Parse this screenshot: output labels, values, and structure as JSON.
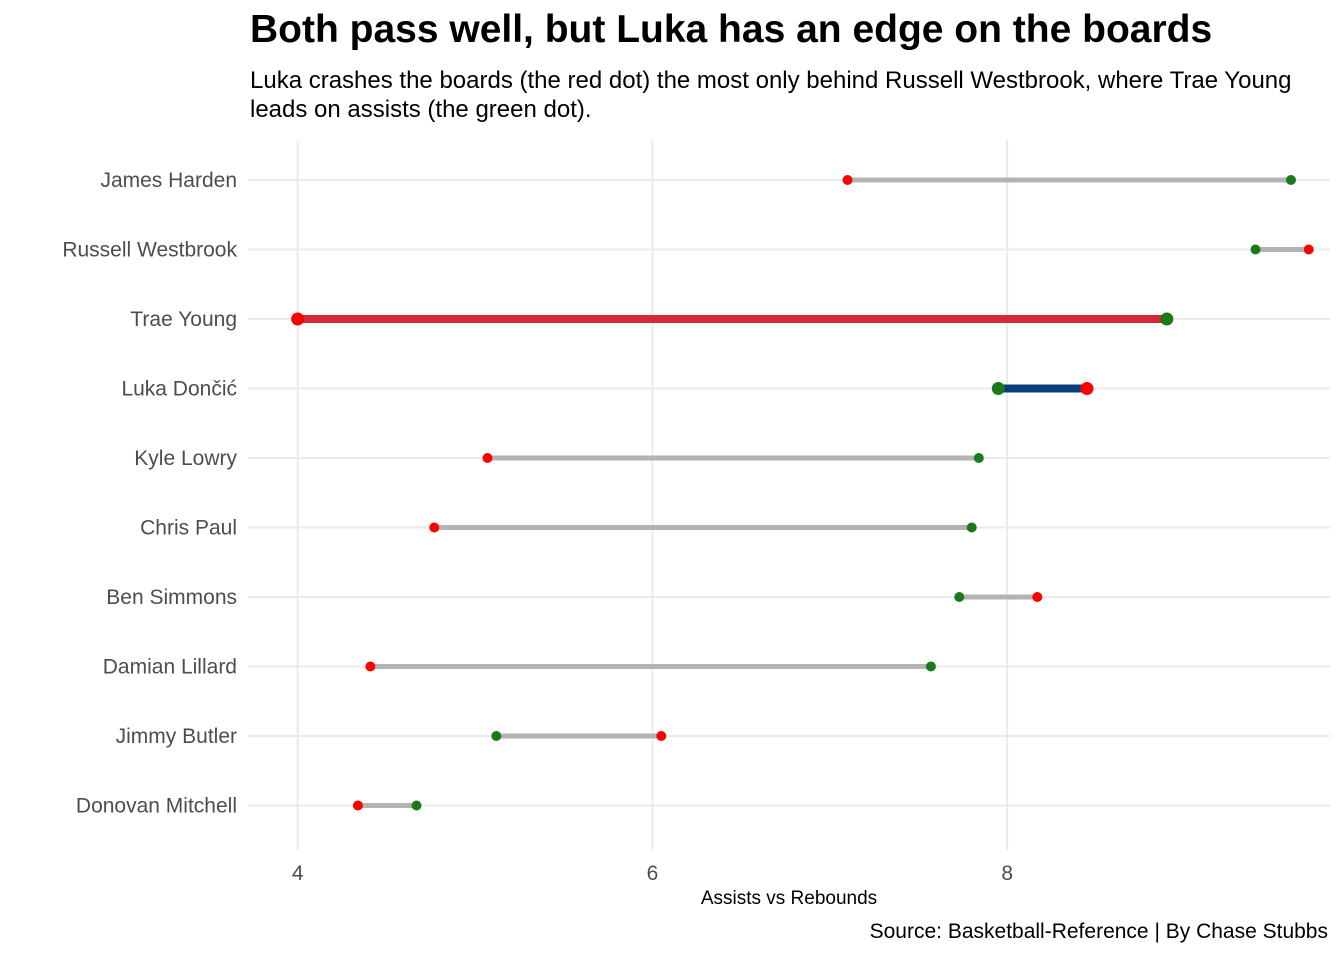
{
  "chart_data": {
    "type": "dumbbell",
    "title": "Both pass well, but Luka has an edge on the boards",
    "subtitle": "Luka crashes the boards (the red dot) the most only behind Russell Westbrook, where Trae Young leads on assists (the green dot).",
    "xlabel": "Assists vs Rebounds",
    "ylabel": "",
    "caption": "Source: Basketball-Reference | By Chase Stubbs",
    "xlim": [
      3.72,
      9.82
    ],
    "x_ticks": [
      4,
      6,
      8
    ],
    "grid": true,
    "legend": "none",
    "series_colors": {
      "rebounds": "#ff0000",
      "assists": "#1a7a1a",
      "segment_default": "#b3b3b3",
      "segment_trae": "#d62839",
      "segment_luka": "#0a3d7a"
    },
    "players": [
      {
        "name": "James Harden",
        "rebounds": 7.1,
        "assists": 9.6,
        "highlight": ""
      },
      {
        "name": "Russell Westbrook",
        "rebounds": 9.7,
        "assists": 9.4,
        "highlight": ""
      },
      {
        "name": "Trae Young",
        "rebounds": 4.0,
        "assists": 8.9,
        "highlight": "trae"
      },
      {
        "name": "Luka Dončić",
        "rebounds": 8.45,
        "assists": 7.95,
        "highlight": "luka"
      },
      {
        "name": "Kyle Lowry",
        "rebounds": 5.07,
        "assists": 7.84,
        "highlight": ""
      },
      {
        "name": "Chris Paul",
        "rebounds": 4.77,
        "assists": 7.8,
        "highlight": ""
      },
      {
        "name": "Ben Simmons",
        "rebounds": 8.17,
        "assists": 7.73,
        "highlight": ""
      },
      {
        "name": "Damian Lillard",
        "rebounds": 4.41,
        "assists": 7.57,
        "highlight": ""
      },
      {
        "name": "Jimmy Butler",
        "rebounds": 6.05,
        "assists": 5.12,
        "highlight": ""
      },
      {
        "name": "Donovan Mitchell",
        "rebounds": 4.34,
        "assists": 4.67,
        "highlight": ""
      }
    ]
  }
}
